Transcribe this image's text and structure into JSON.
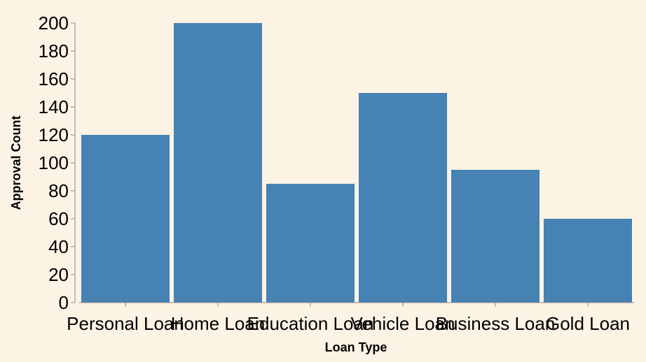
{
  "chart_data": {
    "type": "bar",
    "categories": [
      "Personal Loan",
      "Home Loan",
      "Education Loan",
      "Vehicle Loan",
      "Business Loan",
      "Gold Loan"
    ],
    "values": [
      120,
      200,
      85,
      150,
      95,
      60
    ],
    "xlabel": "Loan Type",
    "ylabel": "Approval Count",
    "ylim": [
      0,
      200
    ],
    "yticks": [
      0,
      20,
      40,
      60,
      80,
      100,
      120,
      140,
      160,
      180,
      200
    ],
    "grid": false,
    "bar_color": "#4682b4",
    "background": "#fdf3e5"
  }
}
